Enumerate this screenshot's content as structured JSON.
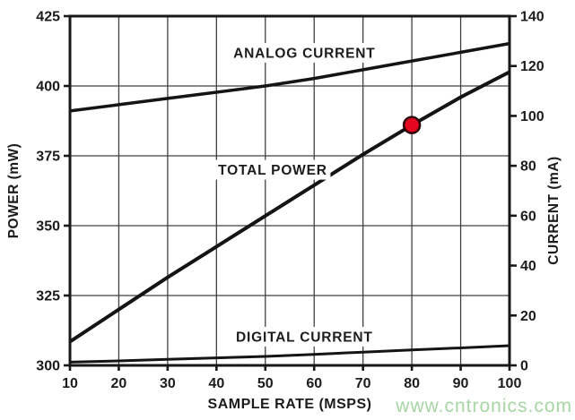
{
  "watermark": {
    "text": "www.cntronics.com",
    "color": "#a6d6a4"
  },
  "colors": {
    "frame": "#181818",
    "grid": "#404040",
    "line": "#141414",
    "text": "#1c1c1c",
    "marker_fill": "#e4051e",
    "marker_stroke": "#2d0008",
    "background": "#ffffff"
  },
  "chart_data": {
    "type": "line",
    "title": "",
    "xlabel": "SAMPLE RATE (MSPS)",
    "grid": true,
    "x_axis": {
      "lim": [
        10,
        100
      ],
      "ticks": [
        10,
        20,
        30,
        40,
        50,
        60,
        70,
        80,
        90,
        100
      ]
    },
    "left_axis": {
      "label": "POWER (mW)",
      "lim": [
        300,
        425
      ],
      "ticks": [
        300,
        325,
        350,
        375,
        400,
        425
      ]
    },
    "right_axis": {
      "label": "CURRENT (mA)",
      "lim": [
        0,
        140
      ],
      "ticks": [
        0,
        20,
        40,
        60,
        80,
        100,
        120,
        140
      ]
    },
    "series": [
      {
        "name": "ANALOG CURRENT",
        "axis": "right",
        "stroke_width": 3.5,
        "label_anchor": {
          "x": 58,
          "value": 125.3
        },
        "points": [
          [
            10,
            102
          ],
          [
            20,
            104.5
          ],
          [
            30,
            107
          ],
          [
            40,
            109.5
          ],
          [
            50,
            112
          ],
          [
            60,
            115
          ],
          [
            70,
            118.5
          ],
          [
            80,
            122
          ],
          [
            90,
            125.5
          ],
          [
            100,
            129
          ]
        ]
      },
      {
        "name": "TOTAL POWER",
        "axis": "left",
        "stroke_width": 4,
        "label_anchor": {
          "x": 51.5,
          "value": 370
        },
        "points": [
          [
            10,
            308.5
          ],
          [
            20,
            320
          ],
          [
            30,
            331.5
          ],
          [
            40,
            342.5
          ],
          [
            50,
            353.5
          ],
          [
            60,
            364.5
          ],
          [
            70,
            375.5
          ],
          [
            80,
            386
          ],
          [
            90,
            396
          ],
          [
            100,
            405
          ]
        ]
      },
      {
        "name": "DIGITAL CURRENT",
        "axis": "right",
        "stroke_width": 3,
        "label_anchor": {
          "x": 58,
          "value": 11.5
        },
        "points": [
          [
            10,
            1.3
          ],
          [
            20,
            1.8
          ],
          [
            30,
            2.4
          ],
          [
            40,
            3
          ],
          [
            50,
            3.6
          ],
          [
            60,
            4.4
          ],
          [
            70,
            5.3
          ],
          [
            80,
            6.2
          ],
          [
            90,
            7
          ],
          [
            100,
            7.9
          ]
        ]
      }
    ],
    "marker": {
      "series": "TOTAL POWER",
      "axis": "left",
      "x": 80,
      "value": 386
    }
  }
}
